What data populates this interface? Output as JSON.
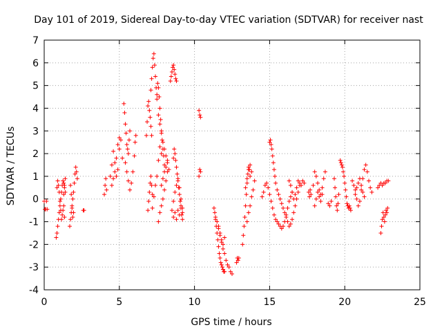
{
  "chart_data": {
    "type": "scatter",
    "title": "Day 101 of 2019, Sidereal Day-to-day VTEC variation (SDTVAR) for receiver nast",
    "xlabel": "GPS time / hours",
    "ylabel": "SDTVAR / TECUs",
    "xlim": [
      0,
      25
    ],
    "ylim": [
      -4,
      7
    ],
    "xticks": [
      "0",
      "5",
      "10",
      "15",
      "20",
      "25"
    ],
    "yticks": [
      "-4",
      "-3",
      "-2",
      "-1",
      "0",
      "1",
      "2",
      "3",
      "4",
      "5",
      "6",
      "7"
    ],
    "grid": true,
    "marker": "+",
    "color": "#ff0000",
    "series": [
      {
        "name": "SDTVAR",
        "x": [
          0.0,
          0.05,
          0.1,
          0.15,
          0.2,
          0.8,
          0.85,
          0.9,
          0.95,
          1.0,
          1.05,
          1.1,
          1.15,
          1.2,
          1.25,
          1.3,
          1.35,
          1.4,
          0.85,
          0.9,
          0.95,
          1.0,
          1.05,
          1.1,
          1.15,
          1.2,
          1.25,
          1.3,
          1.35,
          1.3,
          1.35,
          1.4,
          1.7,
          1.75,
          1.8,
          1.85,
          1.9,
          1.95,
          2.0,
          2.05,
          2.1,
          2.15,
          2.2,
          1.75,
          1.8,
          1.85,
          1.9,
          1.95,
          2.6,
          2.65,
          4.0,
          4.05,
          4.1,
          4.15,
          4.4,
          4.5,
          4.6,
          4.7,
          4.8,
          4.9,
          5.0,
          5.1,
          5.2,
          4.5,
          4.6,
          4.7,
          4.8,
          4.9,
          5.0,
          5.3,
          5.35,
          5.4,
          5.45,
          5.5,
          5.55,
          5.6,
          5.65,
          5.7,
          5.4,
          5.5,
          5.6,
          5.7,
          5.8,
          5.9,
          6.0,
          6.05,
          6.1,
          6.8,
          6.85,
          6.9,
          6.95,
          7.0,
          7.05,
          7.1,
          7.15,
          6.9,
          6.95,
          7.0,
          7.05,
          7.1,
          7.15,
          7.2,
          7.1,
          7.15,
          7.2,
          7.25,
          7.3,
          7.35,
          7.4,
          7.45,
          7.5,
          7.2,
          7.3,
          7.4,
          7.5,
          7.6,
          7.7,
          7.8,
          7.5,
          7.55,
          7.6,
          7.65,
          7.7,
          7.75,
          7.8,
          7.85,
          7.9,
          7.95,
          8.0,
          7.6,
          7.7,
          7.8,
          7.9,
          8.0,
          8.1,
          8.2,
          7.6,
          7.7,
          7.8,
          7.9,
          8.0,
          8.1,
          8.2,
          8.3,
          7.8,
          7.9,
          8.0,
          8.1,
          8.2,
          8.4,
          8.45,
          8.5,
          8.55,
          8.6,
          8.65,
          8.7,
          8.75,
          8.8,
          8.6,
          8.65,
          8.7,
          8.75,
          8.8,
          8.85,
          8.9,
          8.95,
          9.0,
          9.05,
          9.1,
          9.15,
          9.2,
          8.5,
          8.6,
          8.7,
          8.8,
          8.9,
          9.0,
          9.1,
          9.2,
          8.6,
          8.7,
          8.8,
          8.9,
          9.0,
          9.1,
          9.2,
          10.3,
          10.35,
          10.4,
          10.3,
          10.35,
          10.4,
          11.3,
          11.35,
          11.4,
          11.45,
          11.5,
          11.55,
          11.6,
          11.65,
          11.7,
          11.75,
          11.8,
          11.85,
          11.9,
          11.95,
          12.0,
          11.4,
          11.5,
          11.6,
          11.7,
          11.8,
          11.9,
          12.0,
          12.1,
          12.2,
          12.3,
          12.4,
          12.5,
          11.6,
          11.7,
          11.8,
          11.9,
          12.0,
          12.8,
          12.85,
          12.9,
          12.95,
          13.2,
          13.25,
          13.3,
          13.35,
          13.4,
          13.45,
          13.5,
          13.55,
          13.6,
          13.65,
          13.7,
          13.5,
          13.6,
          13.7,
          13.8,
          13.9,
          14.0,
          13.4,
          13.5,
          13.6,
          13.7,
          13.8,
          14.5,
          14.6,
          14.7,
          14.8,
          14.9,
          15.0,
          15.1,
          15.2,
          15.3,
          15.4,
          15.5,
          15.6,
          15.7,
          15.8,
          15.9,
          16.0,
          16.1,
          16.2,
          16.3,
          16.4,
          16.5,
          15.0,
          15.05,
          15.1,
          15.15,
          15.2,
          15.25,
          15.3,
          15.35,
          15.4,
          15.5,
          15.6,
          15.7,
          15.8,
          15.9,
          16.0,
          16.1,
          16.2,
          16.3,
          16.4,
          16.5,
          16.6,
          16.7,
          16.8,
          16.9,
          17.0,
          16.3,
          16.4,
          16.5,
          16.6,
          16.7,
          16.8,
          16.9,
          17.0,
          17.1,
          17.2,
          17.3,
          17.6,
          17.65,
          17.7,
          17.75,
          17.9,
          18.0,
          18.1,
          18.2,
          18.3,
          18.4,
          18.5,
          18.6,
          18.7,
          18.0,
          18.1,
          18.2,
          18.3,
          18.4,
          18.5,
          18.9,
          19.0,
          19.1,
          19.3,
          19.35,
          19.4,
          19.45,
          19.5,
          19.55,
          19.6,
          19.7,
          19.75,
          19.8,
          19.85,
          19.9,
          19.95,
          20.0,
          20.05,
          20.1,
          20.15,
          20.2,
          20.25,
          20.3,
          20.35,
          20.4,
          20.5,
          20.6,
          20.7,
          20.8,
          20.9,
          21.0,
          21.1,
          21.2,
          21.3,
          21.4,
          21.5,
          21.6,
          21.7,
          21.8,
          20.7,
          20.8,
          20.9,
          21.0,
          21.1,
          21.2,
          21.3,
          22.2,
          22.3,
          22.4,
          22.5,
          22.6,
          22.7,
          22.8,
          22.9,
          22.4,
          22.45,
          22.5,
          22.55,
          22.6,
          22.65,
          22.7,
          22.75,
          22.8,
          22.85
        ],
        "y": [
          -0.1,
          -0.45,
          -0.45,
          -0.1,
          -0.45,
          -1.7,
          -1.5,
          -1.2,
          -0.9,
          -0.6,
          -0.3,
          0.0,
          0.3,
          0.6,
          0.8,
          0.7,
          0.5,
          0.3,
          0.5,
          0.8,
          0.6,
          0.3,
          -0.1,
          -0.5,
          -0.9,
          -0.7,
          -0.5,
          -0.3,
          -0.8,
          0.2,
          0.6,
          0.9,
          -1.2,
          -0.9,
          -0.6,
          -0.3,
          0.0,
          0.3,
          0.7,
          1.1,
          1.4,
          1.2,
          0.9,
          0.6,
          0.2,
          -0.4,
          -0.8,
          -0.6,
          -0.5,
          -0.5,
          0.2,
          0.6,
          0.9,
          0.4,
          1.0,
          1.5,
          2.1,
          1.6,
          1.0,
          1.3,
          2.2,
          2.6,
          1.8,
          0.6,
          0.9,
          1.2,
          1.8,
          2.4,
          2.7,
          4.2,
          3.8,
          3.3,
          2.9,
          2.4,
          2.2,
          2.0,
          2.6,
          3.0,
          1.6,
          1.2,
          0.8,
          0.4,
          0.7,
          1.2,
          1.9,
          2.5,
          2.8,
          2.8,
          3.4,
          4.1,
          4.3,
          3.9,
          3.6,
          3.2,
          2.8,
          -0.5,
          -0.1,
          0.3,
          0.7,
          1.0,
          0.6,
          0.2,
          4.8,
          5.3,
          5.8,
          6.2,
          6.4,
          5.9,
          5.4,
          4.9,
          4.4,
          -0.4,
          0.1,
          0.6,
          1.0,
          1.7,
          2.3,
          2.0,
          4.6,
          5.1,
          4.9,
          4.5,
          4.0,
          3.5,
          3.0,
          2.6,
          2.2,
          1.9,
          1.5,
          -1.0,
          -0.6,
          -0.3,
          0.0,
          0.4,
          0.8,
          1.2,
          3.7,
          3.3,
          2.9,
          2.5,
          2.2,
          1.9,
          1.6,
          1.3,
          0.6,
          0.9,
          1.2,
          1.4,
          1.7,
          5.2,
          5.4,
          5.6,
          5.8,
          5.9,
          5.7,
          5.5,
          5.3,
          5.2,
          1.8,
          2.2,
          2.0,
          1.7,
          1.4,
          1.1,
          0.8,
          0.5,
          0.2,
          -0.1,
          -0.4,
          -0.7,
          -0.9,
          -0.5,
          -0.1,
          0.3,
          0.6,
          0.9,
          0.5,
          0.0,
          -0.4,
          -0.8,
          -0.6,
          -0.9,
          -0.5,
          -0.7,
          -0.3,
          -0.6,
          3.9,
          3.7,
          3.6,
          1.0,
          1.3,
          1.2,
          -0.4,
          -0.6,
          -0.9,
          -1.2,
          -1.5,
          -1.8,
          -2.1,
          -2.4,
          -2.6,
          -2.8,
          -2.9,
          -3.0,
          -3.1,
          -3.2,
          -3.2,
          -0.8,
          -1.0,
          -1.3,
          -1.6,
          -1.8,
          -2.0,
          -2.4,
          -2.7,
          -2.9,
          -3.0,
          -3.2,
          -3.3,
          -1.2,
          -1.5,
          -1.9,
          -2.2,
          -1.7,
          -2.8,
          -2.6,
          -2.7,
          -2.6,
          -2.0,
          -1.6,
          -1.2,
          -0.8,
          -0.3,
          0.2,
          0.7,
          1.1,
          1.4,
          1.3,
          1.0,
          -1.0,
          -0.6,
          -0.3,
          0.1,
          0.4,
          0.8,
          0.5,
          0.9,
          1.3,
          1.5,
          1.2,
          0.1,
          0.3,
          0.6,
          0.7,
          0.5,
          0.2,
          -0.1,
          -0.4,
          -0.7,
          -0.9,
          -1.0,
          -1.1,
          -1.2,
          -1.3,
          -1.2,
          -1.0,
          -0.7,
          -0.4,
          -0.1,
          0.1,
          0.3,
          2.5,
          2.6,
          2.4,
          2.2,
          1.9,
          1.6,
          1.3,
          1.0,
          0.7,
          0.4,
          0.2,
          0.0,
          -0.2,
          -0.4,
          -0.6,
          -0.8,
          -1.0,
          -1.2,
          -1.1,
          -0.9,
          -0.6,
          -0.3,
          0.0,
          0.3,
          0.6,
          0.8,
          0.6,
          0.3,
          0.0,
          0.2,
          0.5,
          0.8,
          0.7,
          0.6,
          0.8,
          0.7,
          0.3,
          0.1,
          0.4,
          0.2,
          0.6,
          1.2,
          1.0,
          0.7,
          0.4,
          0.2,
          0.5,
          0.9,
          1.2,
          -0.3,
          0.0,
          0.3,
          0.1,
          -0.1,
          0.2,
          -0.2,
          -0.3,
          -0.1,
          0.9,
          0.5,
          0.1,
          -0.3,
          -0.5,
          -0.2,
          0.2,
          1.7,
          1.6,
          1.5,
          1.4,
          1.2,
          1.0,
          0.7,
          0.4,
          0.1,
          -0.2,
          -0.3,
          -0.4,
          -0.3,
          -0.4,
          -0.5,
          0.8,
          0.6,
          0.4,
          0.0,
          -0.3,
          -0.1,
          0.4,
          0.9,
          1.3,
          1.5,
          1.2,
          0.8,
          0.5,
          0.3,
          0.2,
          0.5,
          0.7,
          0.9,
          0.6,
          0.3,
          0.1,
          0.5,
          0.6,
          0.7,
          0.6,
          0.7,
          0.7,
          0.8,
          0.8,
          -1.5,
          -1.2,
          -0.9,
          -0.6,
          -0.8,
          -1.0,
          -0.7,
          -0.5,
          -0.6,
          -0.4
        ]
      }
    ]
  }
}
